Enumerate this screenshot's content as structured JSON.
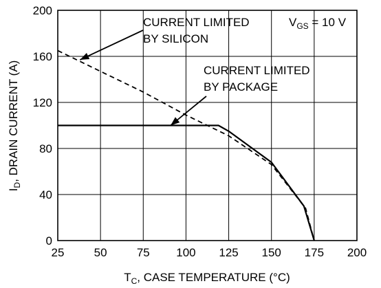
{
  "chart_data": {
    "type": "line",
    "xlabel": "T",
    "xlabel_sub": "C",
    "xlabel_rest": ", CASE TEMPERATURE (°C)",
    "ylabel": "I",
    "ylabel_sub": "D",
    "ylabel_rest": ", DRAIN CURRENT (A)",
    "xlim": [
      25,
      200
    ],
    "ylim": [
      0,
      200
    ],
    "x_ticks": [
      25,
      50,
      75,
      100,
      125,
      150,
      175,
      200
    ],
    "y_ticks": [
      0,
      40,
      80,
      120,
      160,
      200
    ],
    "x_tick_labels": [
      "25",
      "50",
      "75",
      "100",
      "125",
      "150",
      "175",
      "200"
    ],
    "y_tick_labels": [
      "0",
      "40",
      "80",
      "120",
      "160",
      "200"
    ],
    "grid": true,
    "series": [
      {
        "style": "dashed",
        "x": [
          25,
          50,
          75,
          100,
          125,
          150,
          170,
          175
        ],
        "y": [
          165,
          147,
          129,
          109,
          91,
          66,
          28,
          0
        ]
      },
      {
        "style": "solid",
        "x": [
          25,
          119,
          125,
          150,
          169,
          175
        ],
        "y": [
          100,
          100,
          95,
          68,
          30,
          0
        ]
      }
    ],
    "annotations": [
      {
        "lines": [
          "CURRENT LIMITED",
          "BY SILICON"
        ]
      },
      {
        "lines": [
          "CURRENT LIMITED",
          "BY PACKAGE"
        ]
      },
      {
        "text": "V",
        "sub": "GS",
        "rest": " = 10 V"
      }
    ]
  }
}
